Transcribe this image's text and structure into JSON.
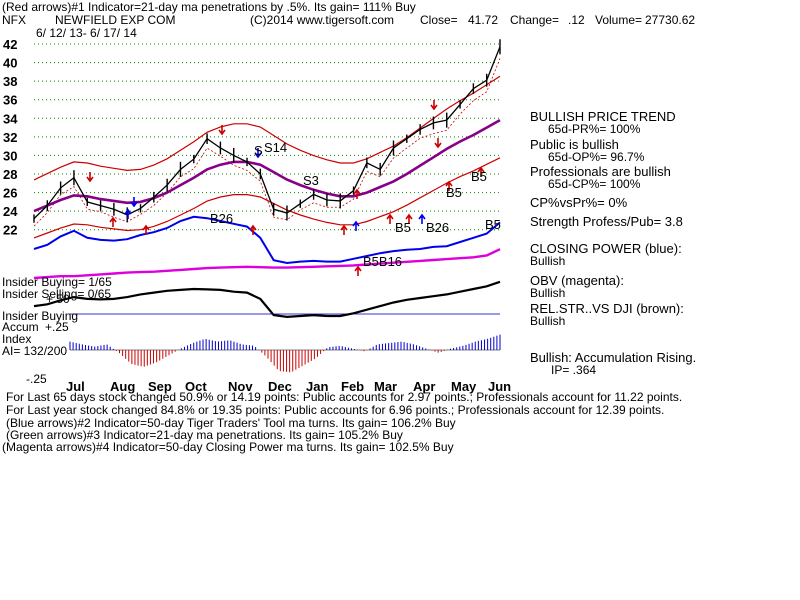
{
  "header": {
    "line1": "(Red arrows)#1 Indicator=21-day ma penetrations by .5%. Its gain= 111% Buy",
    "ticker": "NFX",
    "company": "NEWFIELD EXP COM",
    "copyright": "(C)2014 www.tigersoft.com",
    "close_label": "Close=",
    "close_value": "41.72",
    "change_label": "Change=",
    "change_value": ".12",
    "volume_label": "Volume=",
    "volume_value": "27730.62",
    "date_range": "6/ 12/ 13- 6/ 17/ 14"
  },
  "chart_data": [
    {
      "type": "line",
      "ylim": [
        21,
        42
      ],
      "yticks": [
        22,
        24,
        26,
        28,
        30,
        32,
        34,
        36,
        38,
        40,
        42
      ],
      "months": [
        "Jul",
        "Aug",
        "Sep",
        "Oct",
        "Nov",
        "Dec",
        "Jan",
        "Feb",
        "Mar",
        "Apr",
        "May",
        "Jun"
      ],
      "grid": true,
      "series": [
        {
          "values": [
            23.2,
            24.6,
            26.5,
            27.6,
            25.0,
            24.6,
            24.2,
            23.6,
            24.3,
            25.5,
            26.8,
            28.5,
            29.6,
            31.8,
            30.8,
            30.0,
            29.3,
            28.0,
            24.2,
            23.8,
            24.8,
            25.8,
            25.2,
            25.1,
            26.2,
            29.2,
            28.5,
            30.8,
            31.8,
            32.8,
            33.5,
            33.8,
            35.5,
            37.2,
            38.1,
            41.7
          ]
        },
        {
          "values": [
            24.0,
            24.6,
            25.2,
            25.7,
            25.6,
            25.3,
            25.1,
            24.9,
            25.0,
            25.4,
            26.0,
            26.8,
            27.6,
            28.5,
            29.0,
            29.3,
            29.3,
            29.0,
            28.2,
            27.4,
            26.8,
            26.3,
            25.9,
            25.6,
            25.6,
            26.0,
            26.6,
            27.2,
            28.0,
            28.9,
            29.8,
            30.7,
            31.5,
            32.2,
            33.0,
            33.8
          ]
        }
      ]
    },
    {
      "type": "line",
      "series": [
        {
          "values": [
            0.3,
            0.36,
            0.48,
            0.56,
            0.46,
            0.43,
            0.42,
            0.44,
            0.5,
            0.54,
            0.6,
            0.7,
            0.76,
            0.74,
            0.7,
            0.66,
            0.62,
            0.46,
            0.14,
            0.1,
            0.12,
            0.13,
            0.12,
            0.12,
            0.16,
            0.2,
            0.24,
            0.27,
            0.29,
            0.3,
            0.33,
            0.34,
            0.4,
            0.46,
            0.52,
            0.68
          ]
        },
        {
          "values": [
            0.2,
            0.22,
            0.24,
            0.24,
            0.26,
            0.28,
            0.3,
            0.32,
            0.33,
            0.34,
            0.36,
            0.38,
            0.4,
            0.42,
            0.43,
            0.44,
            0.45,
            0.44,
            0.43,
            0.43,
            0.44,
            0.45,
            0.46,
            0.47,
            0.48,
            0.5,
            0.52,
            0.54,
            0.56,
            0.58,
            0.6,
            0.62,
            0.64,
            0.66,
            0.7,
            0.84
          ]
        },
        {
          "values": [
            0.42,
            0.46,
            0.55,
            0.62,
            0.58,
            0.57,
            0.58,
            0.62,
            0.68,
            0.72,
            0.76,
            0.78,
            0.8,
            0.79,
            0.78,
            0.74,
            0.72,
            0.58,
            0.22,
            0.18,
            0.2,
            0.22,
            0.2,
            0.2,
            0.26,
            0.34,
            0.42,
            0.5,
            0.56,
            0.6,
            0.64,
            0.68,
            0.74,
            0.8,
            0.86,
            0.96
          ]
        }
      ]
    },
    {
      "type": "bar",
      "yticks": [
        "+.25",
        "-.25"
      ],
      "values": [
        0.3,
        0.2,
        0.12,
        0.2,
        -0.1,
        -0.5,
        -0.6,
        -0.45,
        -0.2,
        0.05,
        0.25,
        0.4,
        0.3,
        0.35,
        0.2,
        0.15,
        -0.25,
        -0.75,
        -0.8,
        -0.55,
        -0.3,
        0.1,
        0.15,
        0.05,
        -0.05,
        0.2,
        0.25,
        0.3,
        0.2,
        0.05,
        -0.1,
        0.05,
        0.15,
        0.3,
        0.4,
        0.55
      ]
    }
  ],
  "annotations": {
    "arrow_labels": [
      "S",
      "S14",
      "S3",
      "B26",
      "B5",
      "B26",
      "B5",
      "B5",
      "B5",
      "B5B16"
    ],
    "insider_buying": "Insider Buying= 1/65",
    "insider_selling": "Insider Selling= 0/65",
    "insider_buying2": "Insider Buying",
    "accum_label": "Accum",
    "index_label": "Index",
    "ai_label": "AI= 132/200",
    "plus50": "+.50"
  },
  "right_panel": {
    "trend_title": "BULLISH PRICE TREND",
    "pr_line": "65d-PR%= 100%",
    "public_title": "Public is bullish",
    "op_line": "65d-OP%= 96.7%",
    "prof_title": "Professionals are bullish",
    "cp_line": "65d-CP%= 100%",
    "cpvspr": "CP%vsPr%= 0%",
    "strength": "Strength Profess/Pub= 3.8",
    "closing_power": "CLOSING POWER (blue):",
    "closing_power_val": "Bullish",
    "obv": "OBV (magenta):",
    "obv_val": "Bullish",
    "relstr": "REL.STR..VS DJI (brown):",
    "relstr_val": "Bullish",
    "accum_title": "Bullish: Accumulation Rising.",
    "ip": "IP= .364"
  },
  "bottom": {
    "line1": "For Last 65 days stock changed 50.9% or 14.19 points: Public accounts for 2.97 points.; Professionals account for 11.22 points.",
    "line2": "For Last year stock changed 84.8% or 19.35 points: Public accounts for 6.96 points.; Professionals account for 12.39 points.",
    "line3": "(Blue arrows)#2 Indicator=50-day Tiger Traders' Tool ma turns. Its gain= 106.2% Buy",
    "line4": "(Green arrows)#3 Indicator=21-day ma penetrations. Its gain= 105.2% Buy",
    "line5": "(Magenta arrows)#4 Indicator=50-day Closing Power ma turns. Its gain= 102.5% Buy"
  },
  "colors": {
    "price": "#000000",
    "bands": "#cc0000",
    "ma": "#880088",
    "closing_power": "#0000ee",
    "obv": "#dd00dd",
    "grid": "#008800",
    "accum_pos": "#0000cc",
    "accum_neg": "#cc0000"
  }
}
